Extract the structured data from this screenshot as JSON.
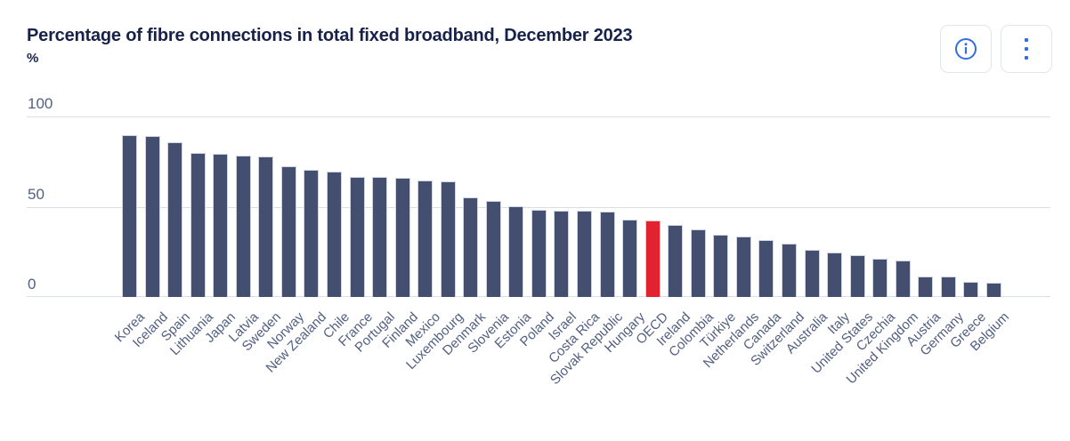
{
  "header": {
    "title": "Percentage of fibre connections in total fixed broadband, December 2023",
    "subtitle": "%",
    "actions": [
      {
        "name": "info",
        "icon": "info-icon"
      },
      {
        "name": "more-options",
        "icon": "kebab-menu-icon"
      }
    ]
  },
  "colors": {
    "title": "#17224a",
    "axis_text": "#525f82",
    "gridline": "#d8dde8",
    "bar": "#444f70",
    "highlight": "#e3222f",
    "icon_blue": "#2f6fe0",
    "button_border": "#e1e5ee"
  },
  "chart_data": {
    "type": "bar",
    "title": "Percentage of fibre connections in total fixed broadband, December 2023",
    "ylabel": "%",
    "xlabel": "",
    "ylim": [
      0,
      100
    ],
    "yticks": [
      0,
      50,
      100
    ],
    "grid": true,
    "legend": "none",
    "highlight_category": "OECD",
    "categories": [
      "Korea",
      "Iceland",
      "Spain",
      "Lithuania",
      "Japan",
      "Latvia",
      "Sweden",
      "Norway",
      "New Zealand",
      "Chile",
      "France",
      "Portugal",
      "Finland",
      "Mexico",
      "Luxembourg",
      "Denmark",
      "Slovenia",
      "Estonia",
      "Poland",
      "Israel",
      "Costa Rica",
      "Slovak Republic",
      "Hungary",
      "OECD",
      "Ireland",
      "Colombia",
      "Türkiye",
      "Netherlands",
      "Canada",
      "Switzerland",
      "Australia",
      "Italy",
      "United States",
      "Czechia",
      "United Kingdom",
      "Austria",
      "Germany",
      "Greece",
      "Belgium"
    ],
    "values": [
      89.5,
      89.0,
      85.9,
      80.0,
      79.4,
      78.1,
      77.6,
      72.4,
      70.2,
      69.4,
      66.5,
      66.3,
      66.0,
      64.3,
      64.0,
      55.2,
      53.2,
      50.1,
      48.1,
      47.6,
      47.6,
      47.1,
      42.9,
      42.2,
      40.1,
      37.5,
      34.4,
      33.7,
      31.6,
      29.8,
      25.9,
      24.6,
      23.1,
      21.3,
      20.1,
      11.3,
      11.1,
      8.3,
      7.7
    ]
  }
}
